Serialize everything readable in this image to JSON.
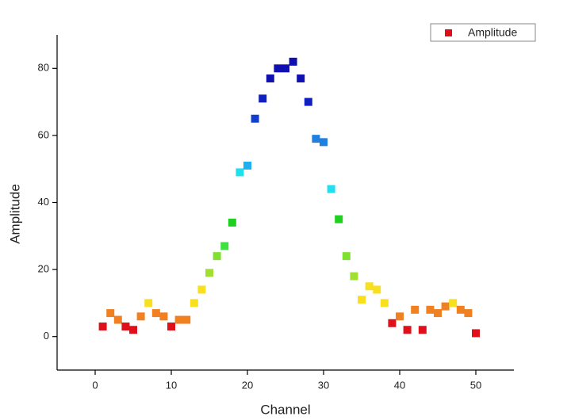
{
  "chart_data": {
    "type": "scatter",
    "x_label": "Channel",
    "y_label": "Amplitude",
    "x": [
      1,
      2,
      3,
      4,
      5,
      6,
      7,
      8,
      9,
      10,
      11,
      12,
      13,
      14,
      15,
      16,
      17,
      18,
      19,
      20,
      21,
      22,
      23,
      24,
      25,
      26,
      27,
      28,
      29,
      30,
      31,
      32,
      33,
      34,
      35,
      36,
      37,
      38,
      39,
      40,
      41,
      42,
      43,
      44,
      45,
      46,
      47,
      48,
      49,
      50
    ],
    "series": [
      {
        "name": "Amplitude",
        "color": "#e0101a",
        "values": [
          3,
          7,
          5,
          3,
          2,
          6,
          10,
          7,
          6,
          3,
          5,
          5,
          10,
          14,
          19,
          24,
          27,
          34,
          49,
          51,
          65,
          71,
          77,
          80,
          80,
          82,
          77,
          70,
          59,
          58,
          44,
          35,
          24,
          18,
          11,
          15,
          14,
          10,
          4,
          6,
          2,
          8,
          2,
          8,
          7,
          9,
          10,
          8,
          7,
          1
        ],
        "colors": [
          "#e0101a",
          "#f08020",
          "#f08020",
          "#e0101a",
          "#e0101a",
          "#f08020",
          "#f8e020",
          "#f08020",
          "#f08020",
          "#e0101a",
          "#f08020",
          "#f08020",
          "#f8e020",
          "#f8e020",
          "#a0e030",
          "#80e030",
          "#40e040",
          "#20d020",
          "#20e0f0",
          "#20b0f0",
          "#1040d0",
          "#1020c0",
          "#1010b0",
          "#1010b0",
          "#1010b0",
          "#1010b0",
          "#1010b0",
          "#1020c0",
          "#2080e0",
          "#2080e0",
          "#20e0f0",
          "#20d020",
          "#80e030",
          "#a0e030",
          "#f8e020",
          "#f8e020",
          "#f8e020",
          "#f8e020",
          "#e0101a",
          "#f08020",
          "#e0101a",
          "#f08020",
          "#e0101a",
          "#f08020",
          "#f08020",
          "#f08020",
          "#f8e020",
          "#f08020",
          "#f08020",
          "#e0101a"
        ]
      }
    ],
    "xlim": [
      -5,
      55
    ],
    "ylim": [
      -10,
      90
    ],
    "xticks": [
      0,
      10,
      20,
      30,
      40,
      50
    ],
    "yticks": [
      0,
      20,
      40,
      60,
      80
    ],
    "legend": "top-right"
  }
}
